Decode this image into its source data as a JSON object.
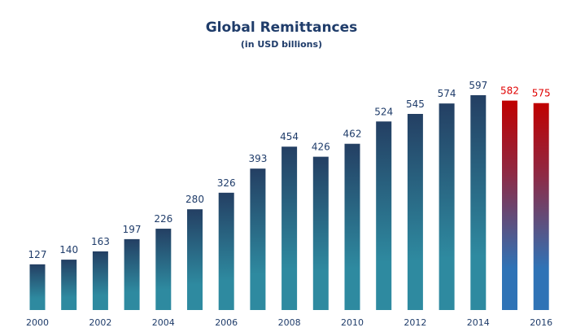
{
  "chart_data": {
    "type": "bar",
    "title": "Global Remittances",
    "subtitle": "(in USD billions)",
    "categories": [
      "2000",
      "2001",
      "2002",
      "2003",
      "2004",
      "2005",
      "2006",
      "2007",
      "2008",
      "2009",
      "2010",
      "2011",
      "2012",
      "2013",
      "2014",
      "2015",
      "2016"
    ],
    "tick_labels": [
      "2000",
      "",
      "2002",
      "",
      "2004",
      "",
      "2006",
      "",
      "2008",
      "",
      "2010",
      "",
      "2012",
      "",
      "2014",
      "",
      "2016"
    ],
    "values": [
      127,
      140,
      163,
      197,
      226,
      280,
      326,
      393,
      454,
      426,
      462,
      524,
      545,
      574,
      597,
      582,
      575
    ],
    "highlighted": [
      false,
      false,
      false,
      false,
      false,
      false,
      false,
      false,
      false,
      false,
      false,
      false,
      false,
      false,
      false,
      true,
      true
    ],
    "ylim": [
      0,
      600
    ],
    "grid": false,
    "colors": {
      "actual_top": "#243f63",
      "actual_bottom": "#2e8aa0",
      "projected_top": "#c00000",
      "projected_bottom": "#2f73b6",
      "actual_label": "#1f3c6a",
      "projected_label": "#e00000",
      "tick_label": "#1f3c6a"
    }
  }
}
